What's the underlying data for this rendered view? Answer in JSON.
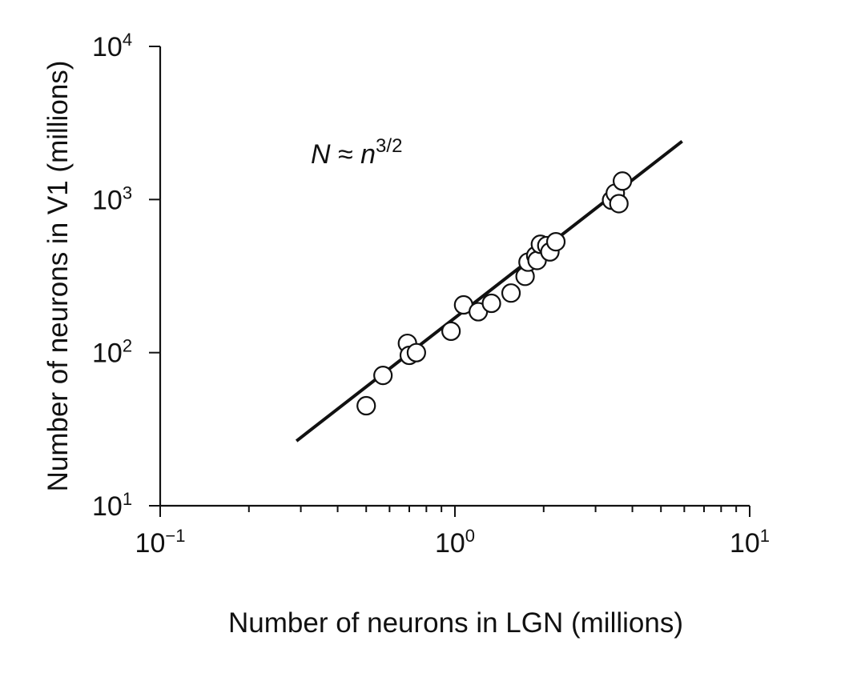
{
  "chart_data": {
    "type": "scatter",
    "xlabel": "Number of neurons in LGN (millions)",
    "ylabel": "Number of neurons in V1 (millions)",
    "xscale": "log",
    "yscale": "log",
    "xlim": [
      0.1,
      10
    ],
    "ylim": [
      10,
      10000
    ],
    "x_tick_labels": [
      {
        "base": "10",
        "exp": "−1",
        "value": 0.1
      },
      {
        "base": "10",
        "exp": "0",
        "value": 1
      },
      {
        "base": "10",
        "exp": "1",
        "value": 10
      }
    ],
    "y_tick_labels": [
      {
        "base": "10",
        "exp": "1",
        "value": 10
      },
      {
        "base": "10",
        "exp": "2",
        "value": 100
      },
      {
        "base": "10",
        "exp": "3",
        "value": 1000
      },
      {
        "base": "10",
        "exp": "4",
        "value": 10000
      }
    ],
    "annotation": {
      "lhs": "N",
      "approx": " ≈ ",
      "base": "n",
      "exponent": "3/2"
    },
    "fit_line": {
      "x": [
        0.29,
        5.9
      ],
      "y": [
        26.5,
        2400
      ]
    },
    "points": [
      {
        "x": 0.5,
        "y": 45
      },
      {
        "x": 0.57,
        "y": 71
      },
      {
        "x": 0.69,
        "y": 115
      },
      {
        "x": 0.7,
        "y": 96
      },
      {
        "x": 0.74,
        "y": 100
      },
      {
        "x": 0.97,
        "y": 138
      },
      {
        "x": 1.07,
        "y": 205
      },
      {
        "x": 1.2,
        "y": 185
      },
      {
        "x": 1.33,
        "y": 210
      },
      {
        "x": 1.55,
        "y": 245
      },
      {
        "x": 1.73,
        "y": 315
      },
      {
        "x": 1.77,
        "y": 390
      },
      {
        "x": 1.88,
        "y": 430
      },
      {
        "x": 1.9,
        "y": 400
      },
      {
        "x": 1.95,
        "y": 510
      },
      {
        "x": 2.05,
        "y": 500
      },
      {
        "x": 2.1,
        "y": 455
      },
      {
        "x": 2.2,
        "y": 530
      },
      {
        "x": 3.4,
        "y": 990
      },
      {
        "x": 3.5,
        "y": 1100
      },
      {
        "x": 3.6,
        "y": 940
      },
      {
        "x": 3.7,
        "y": 1320
      }
    ]
  }
}
